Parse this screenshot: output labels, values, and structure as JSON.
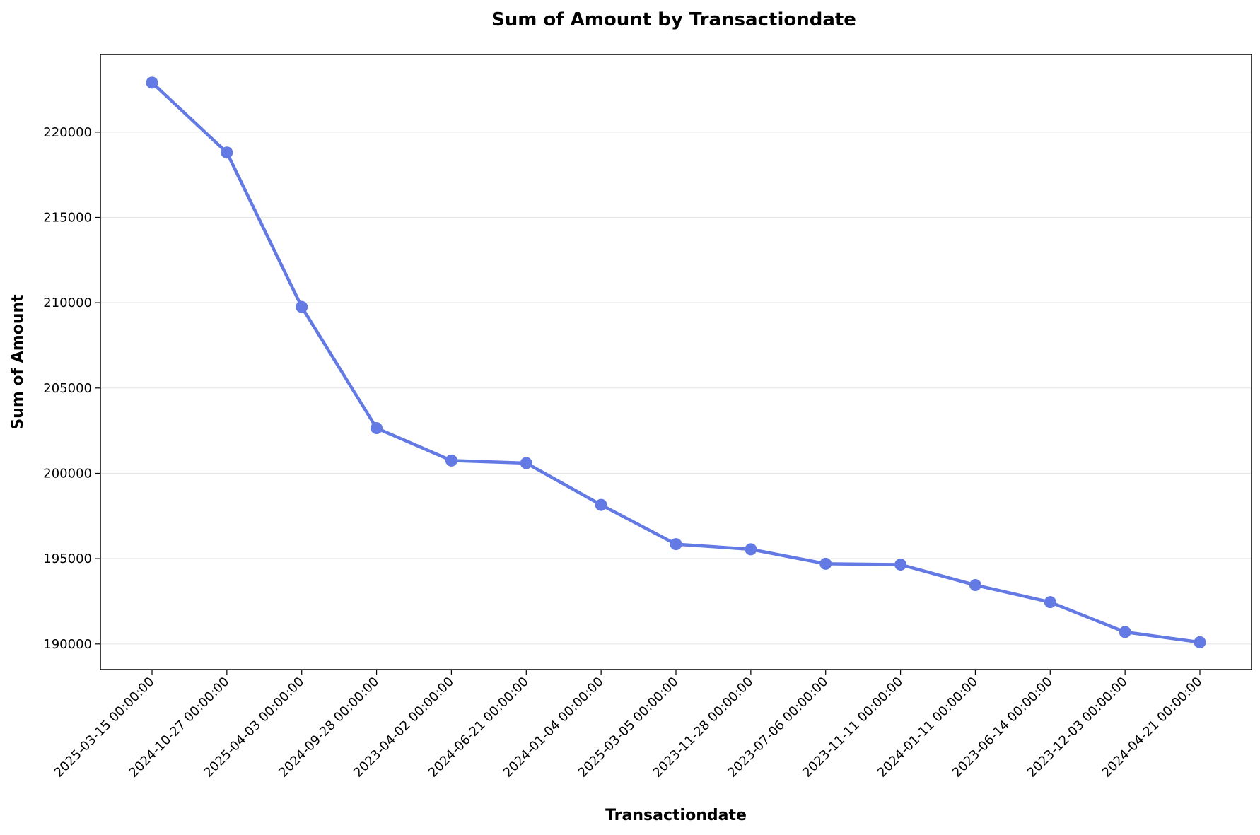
{
  "chart_data": {
    "type": "line",
    "title": "Sum of Amount by Transactiondate",
    "xlabel": "Transactiondate",
    "ylabel": "Sum of Amount",
    "categories": [
      "2025-03-15 00:00:00",
      "2024-10-27 00:00:00",
      "2025-04-03 00:00:00",
      "2024-09-28 00:00:00",
      "2023-04-02 00:00:00",
      "2024-06-21 00:00:00",
      "2024-01-04 00:00:00",
      "2025-03-05 00:00:00",
      "2023-11-28 00:00:00",
      "2023-07-06 00:00:00",
      "2023-11-11 00:00:00",
      "2024-01-11 00:00:00",
      "2023-06-14 00:00:00",
      "2023-12-03 00:00:00",
      "2024-04-21 00:00:00"
    ],
    "series": [
      {
        "values": [
          222900,
          218800,
          209750,
          202650,
          200750,
          200600,
          198150,
          195850,
          195550,
          194700,
          194650,
          193450,
          192450,
          190700,
          190100
        ],
        "color": "#6379e3"
      }
    ],
    "yticks": [
      190000,
      195000,
      200000,
      205000,
      210000,
      215000,
      220000
    ],
    "ylim": [
      188500,
      224550
    ],
    "grid": "horizontal",
    "legend": "none"
  }
}
